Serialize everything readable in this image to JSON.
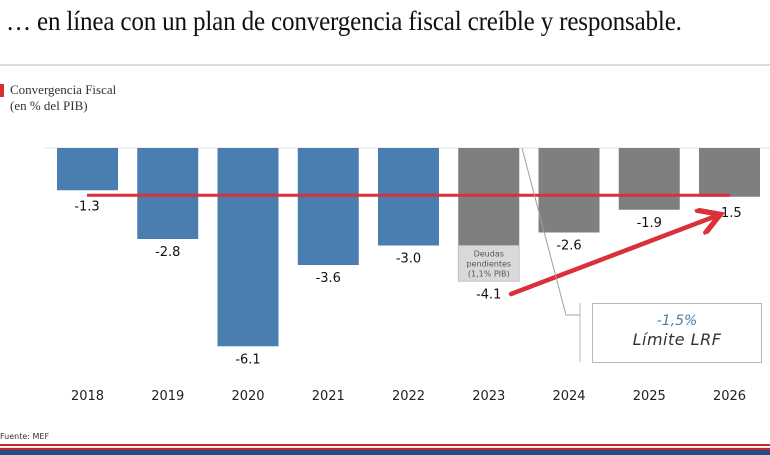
{
  "headline": "… en línea con un plan de convergencia fiscal creíble y responsable.",
  "source": "Fuente: MEF",
  "colors": {
    "historical": "#4a7db0",
    "projected": "#7f7f7f",
    "pending_debt": "#d9d9d9",
    "limit_line": "#d9303a",
    "accent_stripe_red": "#c62828",
    "accent_stripe_blue": "#1f4e8c"
  },
  "callout": {
    "value": "-1,5%",
    "label": "Límite LRF"
  },
  "chart_data": {
    "type": "bar",
    "title": "Convergencia Fiscal",
    "subtitle": "(en % del PIB)",
    "xlabel": "",
    "ylabel": "",
    "categories": [
      "2018",
      "2019",
      "2020",
      "2021",
      "2022",
      "2023",
      "2024",
      "2025",
      "2026"
    ],
    "values": [
      -1.3,
      -2.8,
      -6.1,
      -3.6,
      -3.0,
      -4.1,
      -2.6,
      -1.9,
      -1.5
    ],
    "value_labels": [
      "-1.3",
      "-2.8",
      "-6.1",
      "-3.6",
      "-3.0",
      "-4.1",
      "-2.6",
      "-1.9",
      "-1.5"
    ],
    "series_type": [
      "historical",
      "historical",
      "historical",
      "historical",
      "historical",
      "projected",
      "projected",
      "projected",
      "projected"
    ],
    "stacked_segment": {
      "category": "2023",
      "base_value": -3.0,
      "value": -1.1,
      "label_lines": [
        "Deudas",
        "pendientes",
        "(1,1% PIB)"
      ]
    },
    "reference_line": {
      "value": -1.5,
      "label": "Límite LRF -1,5%"
    },
    "annotation_arrow": {
      "from": "2023",
      "to": "2026"
    },
    "ylim": [
      -6.1,
      0
    ],
    "grid": false,
    "legend": "none"
  }
}
